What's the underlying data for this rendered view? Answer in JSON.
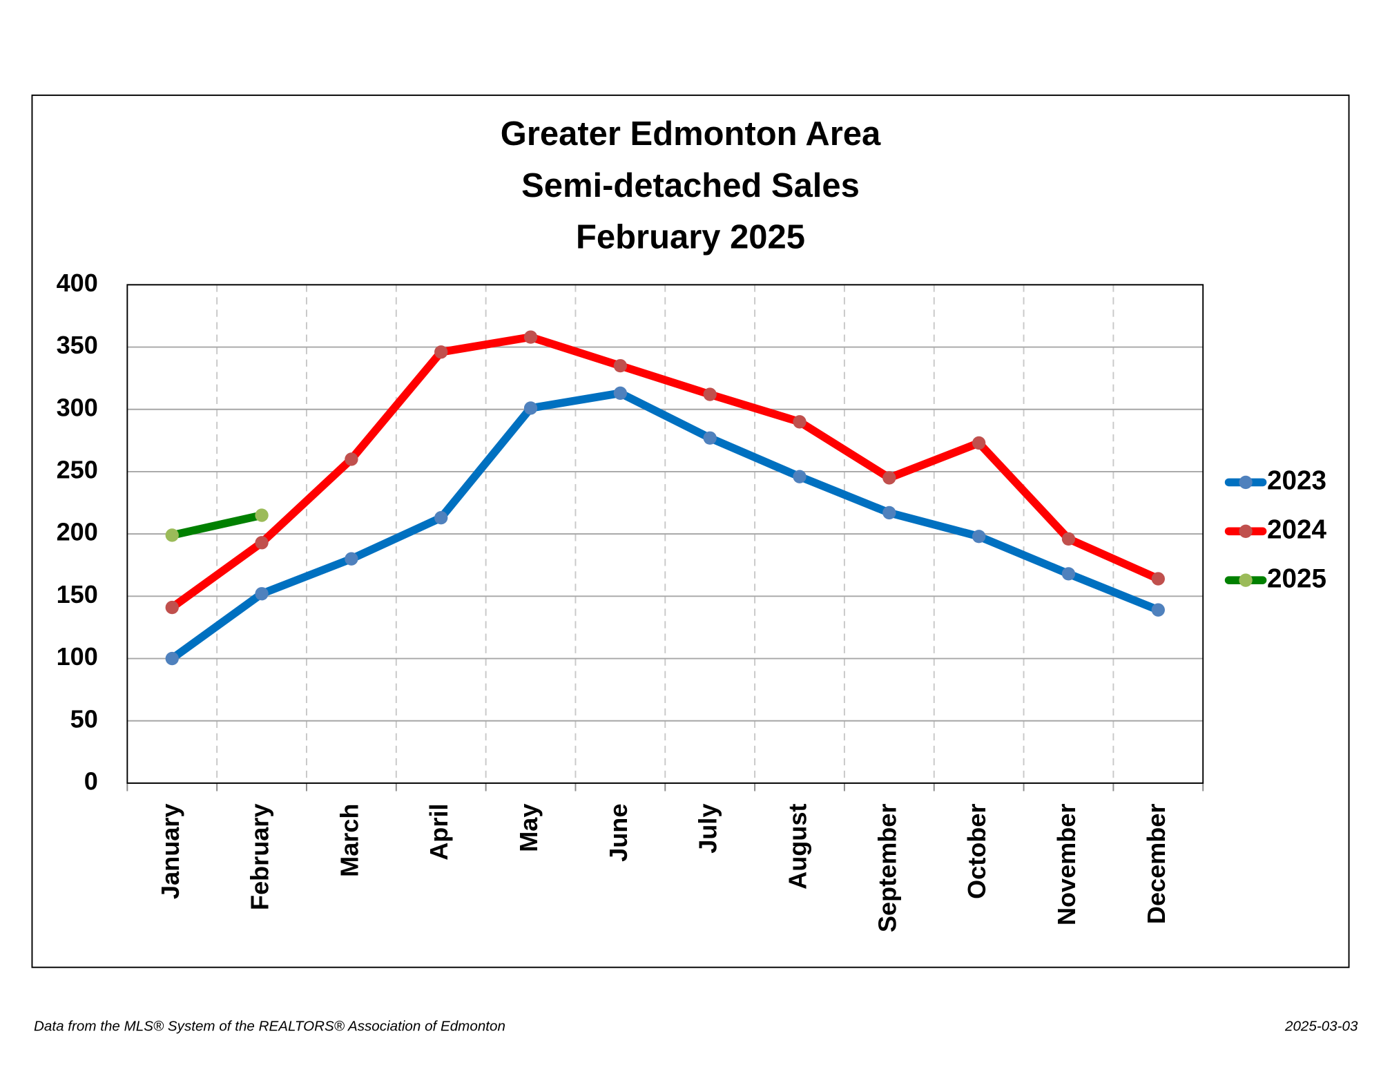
{
  "chart_data": {
    "type": "line",
    "title": [
      "Greater Edmonton Area",
      "Semi-detached Sales",
      "February 2025"
    ],
    "categories": [
      "January",
      "February",
      "March",
      "April",
      "May",
      "June",
      "July",
      "August",
      "September",
      "October",
      "November",
      "December"
    ],
    "series": [
      {
        "name": "2023",
        "color": "#0070c0",
        "marker_color": "#4f81bd",
        "values": [
          100,
          152,
          180,
          213,
          301,
          313,
          277,
          246,
          217,
          198,
          168,
          139
        ]
      },
      {
        "name": "2024",
        "color": "#ff0000",
        "marker_color": "#c0504d",
        "values": [
          141,
          193,
          260,
          346,
          358,
          335,
          312,
          290,
          245,
          273,
          196,
          164
        ]
      },
      {
        "name": "2025",
        "color": "#008000",
        "marker_color": "#9bbb59",
        "values": [
          199,
          215,
          null,
          null,
          null,
          null,
          null,
          null,
          null,
          null,
          null,
          null
        ]
      }
    ],
    "ylim": [
      0,
      400
    ],
    "yticks": [
      0,
      50,
      100,
      150,
      200,
      250,
      300,
      350,
      400
    ],
    "grid": true,
    "legend": "right",
    "source": "Data from the MLS® System of the REALTORS® Association of Edmonton",
    "date": "2025-03-03"
  }
}
